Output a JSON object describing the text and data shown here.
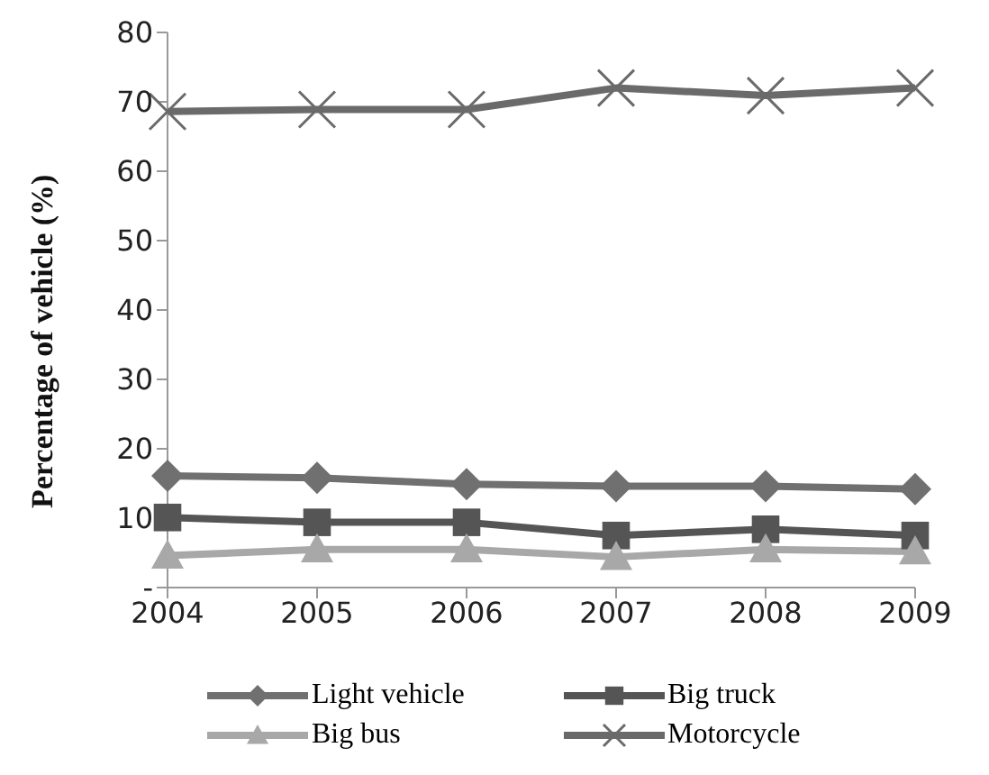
{
  "chart_data": {
    "type": "line",
    "ylabel": "Percentage of vehicle (%)",
    "categories": [
      "2004",
      "2005",
      "2006",
      "2007",
      "2008",
      "2009"
    ],
    "ylim": [
      0,
      80
    ],
    "yticks": [
      {
        "value": 0,
        "label": "-"
      },
      10,
      20,
      30,
      40,
      50,
      60,
      70,
      80
    ],
    "grid": false,
    "legend": "bottom",
    "series": [
      {
        "name": "Light vehicle",
        "color": "#707070",
        "marker": "diamond",
        "values": [
          16.1,
          15.8,
          14.9,
          14.6,
          14.6,
          14.2
        ]
      },
      {
        "name": "Big truck",
        "color": "#555555",
        "marker": "square",
        "values": [
          10.1,
          9.4,
          9.4,
          7.5,
          8.4,
          7.5
        ]
      },
      {
        "name": "Big bus",
        "color": "#a8a8a8",
        "marker": "triangle",
        "values": [
          4.6,
          5.5,
          5.5,
          4.4,
          5.5,
          5.2
        ]
      },
      {
        "name": "Motorcycle",
        "color": "#6a6a6a",
        "marker": "cross",
        "values": [
          68.6,
          68.9,
          68.9,
          72,
          70.9,
          72
        ]
      }
    ]
  }
}
